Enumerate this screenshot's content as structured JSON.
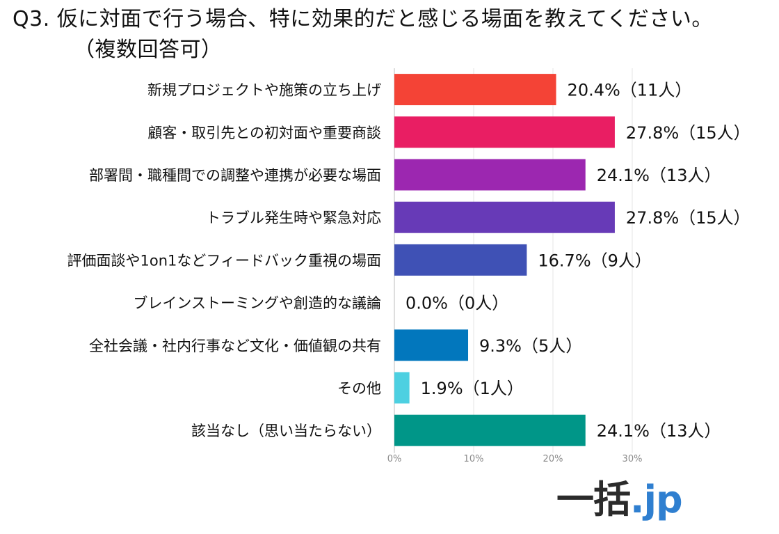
{
  "title": {
    "line1": "Q3. 仮に対面で行う場合、特に効果的だと感じる場面を教えてください。",
    "line2": "（複数回答可）"
  },
  "logo": {
    "main": "一括",
    "suffix": ".jp"
  },
  "chart_data": {
    "type": "bar",
    "orientation": "horizontal",
    "categories": [
      "新規プロジェクトや施策の立ち上げ",
      "顧客・取引先との初対面や重要商談",
      "部署間・職種間での調整や連携が必要な場面",
      "トラブル発生時や緊急対応",
      "評価面談や1on1などフィードバック重視の場面",
      "ブレインストーミングや創造的な議論",
      "全社会議・社内行事など文化・価値観の共有",
      "その他",
      "該当なし（思い当たらない）"
    ],
    "values": [
      20.4,
      27.8,
      24.1,
      27.8,
      16.7,
      0.0,
      9.3,
      1.9,
      24.1
    ],
    "data_labels": [
      "20.4%（11人）",
      "27.8%（15人）",
      "24.1%（13人）",
      "27.8%（15人）",
      "16.7%（9人）",
      "0.0%（0人）",
      "9.3%（5人）",
      "1.9%（1人）",
      "24.1%（13人）"
    ],
    "colors": [
      "#f44336",
      "#e91e63",
      "#9c27b0",
      "#673ab7",
      "#3f51b5",
      "#2196f3",
      "#0277bd",
      "#4dd0e1",
      "#009688"
    ],
    "xlim": [
      0,
      33
    ],
    "xticks": [
      "0%",
      "10%",
      "20%",
      "30%"
    ],
    "xtick_values": [
      0,
      10,
      20,
      30
    ],
    "grid": true
  }
}
